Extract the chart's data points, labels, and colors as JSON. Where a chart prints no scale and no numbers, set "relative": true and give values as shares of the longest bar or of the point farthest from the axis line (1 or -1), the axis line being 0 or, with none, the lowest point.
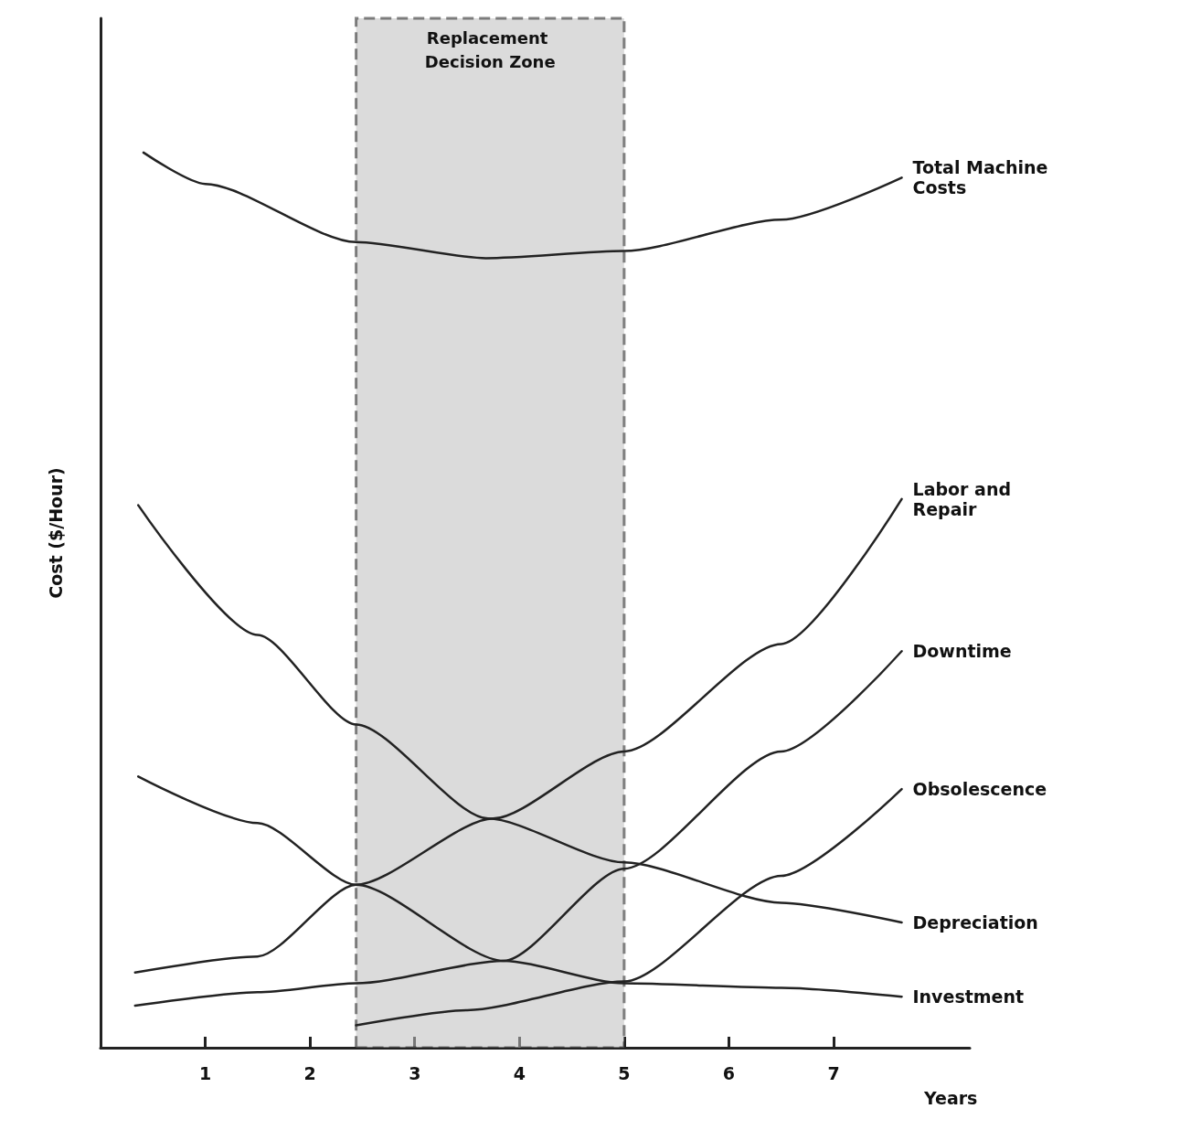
{
  "chart_data": {
    "type": "line",
    "relative": true,
    "xlabel": "Years",
    "ylabel": "Cost ($/Hour)",
    "xlim": [
      0,
      8.3
    ],
    "xticks": [
      1,
      2,
      3,
      4,
      5,
      6,
      7
    ],
    "marker": "none",
    "line_style": "solid",
    "grid": false,
    "legend": false,
    "bands": [
      {
        "axis": "x",
        "from": 2.44,
        "to": 5.0,
        "label": "Replacement Decision Zone",
        "color": "#bdbdbd"
      }
    ],
    "series": [
      {
        "name": "Total Machine Costs",
        "color": "#222222",
        "x": [
          0.41,
          1.0,
          2.44,
          3.68,
          5.0,
          6.5,
          7.65
        ],
        "values": [
          1,
          0.965,
          0.9,
          0.882,
          0.89,
          0.925,
          0.972
        ]
      },
      {
        "name": "Labor and Repair",
        "color": "#222222",
        "x": [
          0.33,
          1.5,
          2.44,
          3.75,
          5.0,
          6.5,
          7.65
        ],
        "values": [
          0.084,
          0.102,
          0.182,
          0.256,
          0.331,
          0.451,
          0.613
        ]
      },
      {
        "name": "Downtime",
        "color": "#222222",
        "x": [
          0.33,
          1.5,
          2.44,
          3.85,
          5.0,
          6.5,
          7.65
        ],
        "values": [
          0.047,
          0.062,
          0.072,
          0.097,
          0.2,
          0.331,
          0.443
        ]
      },
      {
        "name": "Obsolescence",
        "color": "#222222",
        "x": [
          2.44,
          3.5,
          5.0,
          6.5,
          7.65
        ],
        "values": [
          0.025,
          0.042,
          0.074,
          0.192,
          0.289
        ]
      },
      {
        "name": "Depreciation",
        "color": "#222222",
        "x": [
          0.36,
          1.5,
          2.44,
          3.7,
          5.0,
          6.5,
          7.65
        ],
        "values": [
          0.606,
          0.461,
          0.361,
          0.256,
          0.207,
          0.162,
          0.14
        ]
      },
      {
        "name": "Investment",
        "color": "#222222",
        "x": [
          0.36,
          1.5,
          2.44,
          3.85,
          5.0,
          6.5,
          7.65
        ],
        "values": [
          0.303,
          0.251,
          0.182,
          0.097,
          0.072,
          0.067,
          0.057
        ]
      }
    ]
  }
}
